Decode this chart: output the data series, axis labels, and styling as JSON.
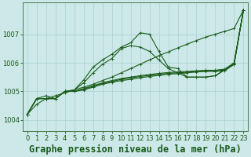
{
  "title": "Graphe pression niveau de la mer (hPa)",
  "bg_color": "#cce8e8",
  "grid_color": "#aad0d0",
  "line_color": "#1a5c1a",
  "x_ticks": [
    0,
    1,
    2,
    3,
    4,
    5,
    6,
    7,
    8,
    9,
    10,
    11,
    12,
    13,
    14,
    15,
    16,
    17,
    18,
    19,
    20,
    21,
    22,
    23
  ],
  "ylim": [
    1003.6,
    1008.1
  ],
  "yticks": [
    1004,
    1005,
    1006,
    1007
  ],
  "title_fontsize": 8.5,
  "tick_fontsize": 6,
  "series": {
    "line_straight": [
      1004.2,
      1004.55,
      1004.75,
      1004.85,
      1004.95,
      1005.05,
      1005.15,
      1005.25,
      1005.38,
      1005.5,
      1005.65,
      1005.8,
      1005.95,
      1006.1,
      1006.25,
      1006.38,
      1006.52,
      1006.65,
      1006.78,
      1006.9,
      1007.0,
      1007.1,
      1007.2,
      1007.85
    ],
    "line_peak": [
      1004.2,
      1004.75,
      1004.85,
      1004.75,
      1005.0,
      1005.05,
      1005.4,
      1005.85,
      1006.1,
      1006.3,
      1006.55,
      1006.7,
      1007.05,
      1007.0,
      1006.4,
      1005.85,
      1005.8,
      1005.5,
      1005.5,
      1005.5,
      1005.55,
      1005.75,
      1005.95,
      1007.85
    ],
    "line_mid": [
      1004.2,
      1004.75,
      1004.75,
      1004.75,
      1005.0,
      1005.05,
      1005.3,
      1005.65,
      1005.95,
      1006.15,
      1006.5,
      1006.6,
      1006.55,
      1006.4,
      1006.1,
      1005.8,
      1005.65,
      1005.5,
      1005.5,
      1005.5,
      1005.55,
      1005.75,
      1005.95,
      1007.85
    ],
    "bundle": [
      [
        1004.2,
        1004.75,
        1004.75,
        1004.75,
        1005.0,
        1005.0,
        1005.05,
        1005.15,
        1005.25,
        1005.32,
        1005.38,
        1005.42,
        1005.48,
        1005.52,
        1005.56,
        1005.6,
        1005.62,
        1005.65,
        1005.68,
        1005.7,
        1005.7,
        1005.72,
        1005.95,
        1007.85
      ],
      [
        1004.2,
        1004.75,
        1004.75,
        1004.75,
        1005.0,
        1005.0,
        1005.08,
        1005.18,
        1005.28,
        1005.35,
        1005.42,
        1005.47,
        1005.52,
        1005.56,
        1005.6,
        1005.63,
        1005.65,
        1005.67,
        1005.7,
        1005.72,
        1005.72,
        1005.75,
        1005.98,
        1007.85
      ],
      [
        1004.2,
        1004.75,
        1004.75,
        1004.75,
        1005.0,
        1005.0,
        1005.1,
        1005.2,
        1005.3,
        1005.38,
        1005.45,
        1005.5,
        1005.55,
        1005.59,
        1005.63,
        1005.66,
        1005.68,
        1005.7,
        1005.72,
        1005.74,
        1005.74,
        1005.78,
        1006.0,
        1007.85
      ]
    ]
  }
}
